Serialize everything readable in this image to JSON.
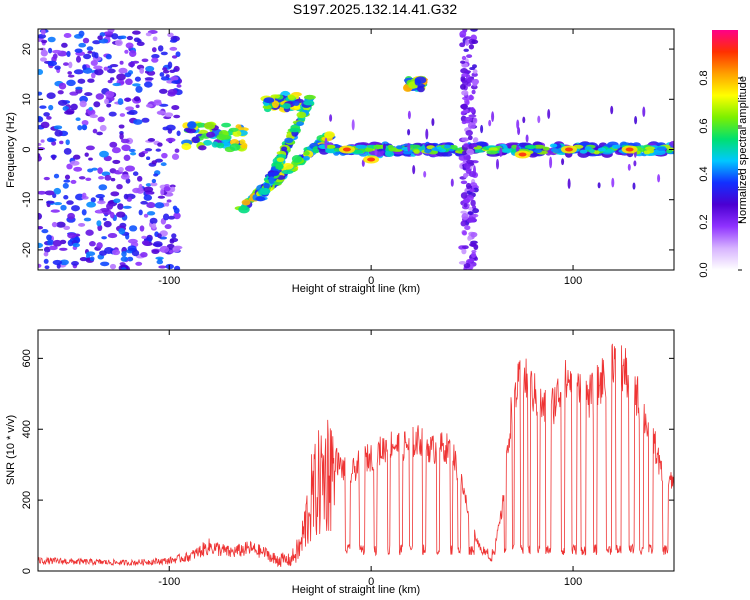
{
  "figure_title": "S197.2025.132.14.41.G32",
  "chart_data": [
    {
      "type": "heatmap",
      "title": "",
      "xlabel": "Height of straight line (km)",
      "ylabel": "Frequency (Hz)",
      "xlim": [
        -165,
        150
      ],
      "ylim": [
        -24,
        24
      ],
      "xticks": [
        -100,
        0,
        100
      ],
      "yticks": [
        -20,
        -10,
        0,
        10,
        20
      ],
      "colorbar": {
        "label": "Normalized spectral amplitude",
        "range": [
          0,
          1
        ],
        "ticks": [
          0.0,
          0.2,
          0.4,
          0.6,
          0.8
        ],
        "tick_labels": [
          "0.0",
          "0.2",
          "0.4",
          "0.6",
          "0.8"
        ],
        "colormap": [
          "#ffffff",
          "#d7b3ff",
          "#8f32ff",
          "#4b00d2",
          "#1230ff",
          "#00c8ff",
          "#00e070",
          "#7cf000",
          "#ffff00",
          "#ffa000",
          "#ff3000",
          "#ff0088"
        ]
      },
      "features": [
        {
          "x": [
            -165,
            -95
          ],
          "y": [
            -24,
            24
          ],
          "level": 0.3,
          "kind": "scatter_noise"
        },
        {
          "x": [
            -92,
            -62
          ],
          "y": [
            0,
            5
          ],
          "level": 0.55,
          "kind": "blobs"
        },
        {
          "x": [
            -65,
            -20
          ],
          "y": [
            -12,
            3
          ],
          "level": 0.5,
          "kind": "rising_line"
        },
        {
          "x": [
            -55,
            -30
          ],
          "y": [
            -10,
            10
          ],
          "level": 0.4,
          "kind": "rising_line"
        },
        {
          "x": [
            -52,
            -35
          ],
          "y": [
            8,
            11
          ],
          "level": 0.55,
          "kind": "blobs"
        },
        {
          "x": [
            -25,
            150
          ],
          "y": [
            -1,
            1
          ],
          "level": 0.7,
          "kind": "zero_line"
        },
        {
          "x": [
            18,
            26
          ],
          "y": [
            12,
            14
          ],
          "level": 0.6,
          "kind": "blobs"
        },
        {
          "x": [
            45,
            52
          ],
          "y": [
            -24,
            24
          ],
          "level": 0.2,
          "kind": "vertical_band"
        }
      ],
      "peaks": [
        {
          "x": -12,
          "y": 0
        },
        {
          "x": 0,
          "y": -2
        },
        {
          "x": 75,
          "y": -1
        },
        {
          "x": 98,
          "y": 0
        },
        {
          "x": 128,
          "y": 0
        }
      ]
    },
    {
      "type": "line",
      "title": "",
      "xlabel": "Height of straight line (km)",
      "ylabel": "SNR (10 * v/v)",
      "xlim": [
        -165,
        150
      ],
      "ylim": [
        0,
        680
      ],
      "xticks": [
        -100,
        0,
        100
      ],
      "yticks": [
        0,
        200,
        400,
        600
      ],
      "color": "#ee3333",
      "series": [
        {
          "x": [
            -165,
            -140,
            -120,
            -100,
            -90,
            -80,
            -70,
            -60,
            -50,
            -40,
            -35,
            -30,
            -25,
            -20,
            -15,
            -10,
            -5,
            0,
            5,
            10,
            15,
            20,
            25,
            30,
            35,
            40,
            45,
            50,
            55,
            60,
            65,
            70,
            75,
            80,
            85,
            90,
            95,
            100,
            105,
            110,
            115,
            120,
            125,
            130,
            135,
            140,
            145,
            150
          ],
          "values": [
            25,
            22,
            20,
            25,
            35,
            60,
            45,
            55,
            40,
            35,
            80,
            230,
            300,
            350,
            300,
            280,
            320,
            330,
            350,
            370,
            360,
            370,
            380,
            350,
            360,
            350,
            250,
            130,
            50,
            30,
            180,
            500,
            560,
            520,
            470,
            480,
            540,
            560,
            500,
            510,
            560,
            620,
            580,
            540,
            450,
            380,
            250,
            260
          ],
          "segments": [
            {
              "range": [
                -165,
                -100
              ],
              "base": 25,
              "noise": 10,
              "kind": "noise"
            },
            {
              "range": [
                -100,
                -50
              ],
              "base": 45,
              "noise": 20,
              "kind": "noise"
            },
            {
              "range": [
                -50,
                -30
              ],
              "base": 80,
              "noise": 50,
              "kind": "noise"
            },
            {
              "range": [
                -30,
                -18
              ],
              "base": 230,
              "noise": 120,
              "kind": "noise"
            },
            {
              "range": [
                -18,
                150
              ],
              "lows": [
                40,
                55,
                75
              ],
              "highs": [
                320,
                550,
                650
              ],
              "kind": "steps"
            }
          ]
        }
      ]
    }
  ]
}
